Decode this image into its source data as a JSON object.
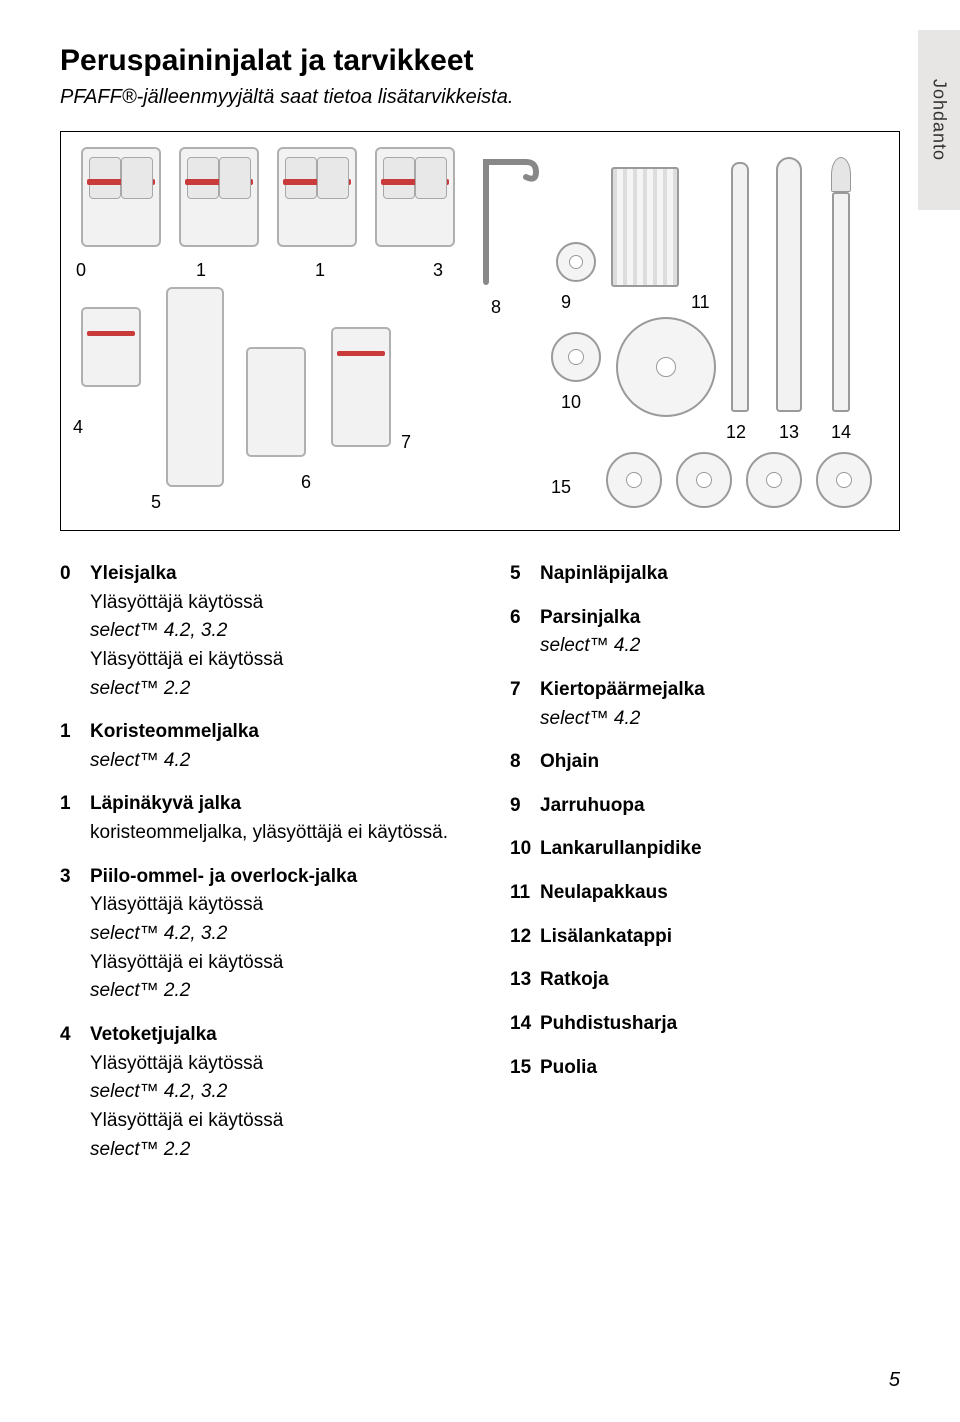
{
  "title": "Peruspaininjalat ja tarvikkeet",
  "subtitle": "PFAFF®-jälleenmyyjältä saat tietoa lisätarvikkeista.",
  "side_tab": "Johdanto",
  "page_number": "5",
  "diagram_numbers": [
    "0",
    "1",
    "1",
    "3",
    "8",
    "9",
    "11",
    "10",
    "4",
    "7",
    "6",
    "5",
    "12",
    "13",
    "14",
    "15"
  ],
  "left": [
    {
      "n": "0",
      "label": "Yleisjalka",
      "lines": [
        "Yläsyöttäjä käytössä",
        {
          "ital": "select™ 4.2, 3.2"
        },
        "Yläsyöttäjä ei käytössä",
        {
          "ital": "select™ 2.2"
        }
      ]
    },
    {
      "n": "1",
      "label": "Koristeommeljalka",
      "lines": [
        {
          "ital": "select™ 4.2"
        }
      ]
    },
    {
      "n": "1",
      "label": "Läpinäkyvä jalka",
      "lines": [
        "koristeommeljalka, yläsyöttäjä ei käytössä."
      ]
    },
    {
      "n": "3",
      "label": "Piilo-ommel- ja overlock-jalka",
      "lines": [
        "Yläsyöttäjä käytössä",
        {
          "ital": "select™ 4.2, 3.2"
        },
        "Yläsyöttäjä ei käytössä",
        {
          "ital": "select™ 2.2"
        }
      ]
    },
    {
      "n": "4",
      "label": "Vetoketjujalka",
      "lines": [
        "Yläsyöttäjä käytössä",
        {
          "ital": "select™ 4.2, 3.2"
        },
        "Yläsyöttäjä ei käytössä",
        {
          "ital": "select™ 2.2"
        }
      ]
    }
  ],
  "right": [
    {
      "n": "5",
      "label": "Napinläpijalka"
    },
    {
      "n": "6",
      "label": "Parsinjalka",
      "lines": [
        {
          "ital": "select™ 4.2"
        }
      ]
    },
    {
      "n": "7",
      "label": "Kiertopäärmejalka",
      "lines": [
        {
          "ital": "select™ 4.2"
        }
      ]
    },
    {
      "n": "8",
      "label": "Ohjain"
    },
    {
      "n": "9",
      "label": "Jarruhuopa"
    },
    {
      "n": "10",
      "label": "Lankarullanpidike"
    },
    {
      "n": "11",
      "label": "Neulapakkaus"
    },
    {
      "n": "12",
      "label": "Lisälankatappi"
    },
    {
      "n": "13",
      "label": "Ratkoja"
    },
    {
      "n": "14",
      "label": "Puhdistusharja"
    },
    {
      "n": "15",
      "label": "Puolia"
    }
  ]
}
